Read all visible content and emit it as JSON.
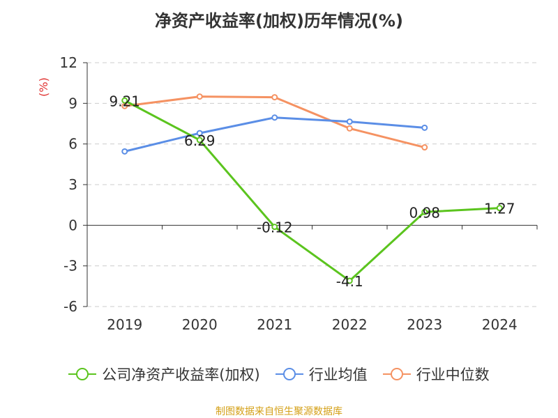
{
  "chart_data": {
    "type": "line",
    "title": "净资产收益率(加权)历年情况(%)",
    "ylabel": "(%)",
    "categories": [
      "2019",
      "2020",
      "2021",
      "2022",
      "2023",
      "2024"
    ],
    "ylim": [
      -6,
      12
    ],
    "yticks": [
      "12",
      "9",
      "6",
      "3",
      "0",
      "-3",
      "-6"
    ],
    "grid": true,
    "legend_position": "bottom",
    "series": [
      {
        "name": "公司净资产收益率(加权)",
        "color": "#5bc41e",
        "values": [
          9.21,
          6.29,
          -0.12,
          -4.1,
          0.98,
          1.27
        ],
        "labels": [
          "9.21",
          "6.29",
          "-0.12",
          "-4.1",
          "0.98",
          "1.27"
        ]
      },
      {
        "name": "行业均值",
        "color": "#5b8ee6",
        "values": [
          5.45,
          6.8,
          7.95,
          7.65,
          7.2,
          null
        ]
      },
      {
        "name": "行业中位数",
        "color": "#f59262",
        "values": [
          8.8,
          9.5,
          9.45,
          7.15,
          5.75,
          null
        ]
      }
    ]
  },
  "source_note": "制图数据来自恒生聚源数据库"
}
